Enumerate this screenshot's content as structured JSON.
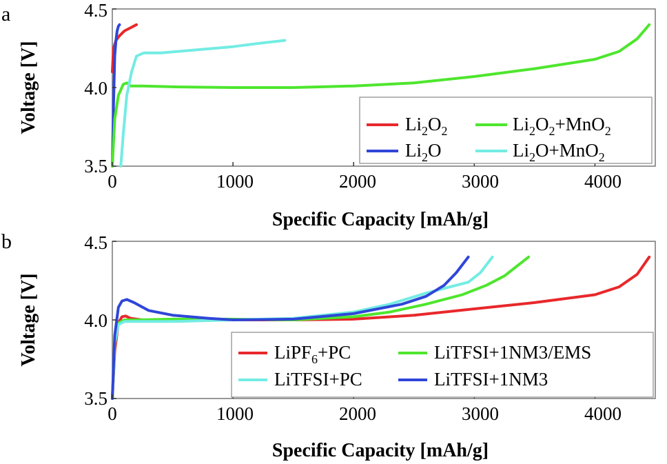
{
  "chart_data": [
    {
      "type": "line",
      "panel_label": "a",
      "xlabel": "Specific Capacity [mAh/g]",
      "ylabel": "Voltage [V]",
      "xlim": [
        0,
        4500
      ],
      "ylim": [
        3.5,
        4.5
      ],
      "xticks": [
        0,
        1000,
        2000,
        3000,
        4000
      ],
      "yticks": [
        3.5,
        4.0,
        4.5
      ],
      "xtick_labels": [
        "0",
        "1000",
        "2000",
        "3000",
        "4000"
      ],
      "ytick_labels": [
        "3.5",
        "4.0",
        "4.5"
      ],
      "legend": {
        "placement": "bottom-right",
        "columns": 2
      },
      "series": [
        {
          "name": "Li2O2",
          "label_base": "Li",
          "label_sub1": "2",
          "label_mid": "O",
          "label_sub2": "2",
          "label_rest": "",
          "label_sub3": "",
          "color": "#e8282b",
          "x": [
            0,
            10,
            30,
            60,
            100,
            150,
            200
          ],
          "y": [
            4.1,
            4.25,
            4.3,
            4.33,
            4.36,
            4.38,
            4.4
          ]
        },
        {
          "name": "Li2O",
          "label_base": "Li",
          "label_sub1": "2",
          "label_mid": "O",
          "label_sub2": "",
          "label_rest": "",
          "label_sub3": "",
          "color": "#2f46d8",
          "x": [
            0,
            10,
            20,
            30,
            40,
            50,
            60
          ],
          "y": [
            3.5,
            3.9,
            4.2,
            4.3,
            4.36,
            4.39,
            4.4
          ]
        },
        {
          "name": "Li2O2+MnO2",
          "label_base": "Li",
          "label_sub1": "2",
          "label_mid": "O",
          "label_sub2": "2",
          "label_rest": "+MnO",
          "label_sub3": "2",
          "color": "#4ee62e",
          "x": [
            0,
            20,
            50,
            90,
            120,
            150,
            250,
            500,
            1000,
            1500,
            2000,
            2500,
            3000,
            3500,
            4000,
            4200,
            4350,
            4450
          ],
          "y": [
            3.5,
            3.8,
            3.95,
            4.02,
            4.03,
            4.01,
            4.01,
            4.005,
            4.0,
            4.0,
            4.01,
            4.03,
            4.07,
            4.12,
            4.18,
            4.23,
            4.31,
            4.4
          ]
        },
        {
          "name": "Li2O+MnO2",
          "label_base": "Li",
          "label_sub1": "2",
          "label_mid": "O",
          "label_sub2": "",
          "label_rest": "+MnO",
          "label_sub3": "2",
          "color": "#73ece3",
          "x": [
            70,
            90,
            120,
            160,
            200,
            260,
            400,
            700,
            1000,
            1200,
            1430
          ],
          "y": [
            3.5,
            3.7,
            3.95,
            4.1,
            4.2,
            4.22,
            4.22,
            4.24,
            4.26,
            4.28,
            4.3
          ]
        }
      ]
    },
    {
      "type": "line",
      "panel_label": "b",
      "xlabel": "Specific Capacity [mAh/g]",
      "ylabel": "Voltage [V]",
      "xlim": [
        0,
        4500
      ],
      "ylim": [
        3.5,
        4.5
      ],
      "xticks": [
        0,
        1000,
        2000,
        3000,
        4000
      ],
      "yticks": [
        3.5,
        4.0,
        4.5
      ],
      "xtick_labels": [
        "0",
        "1000",
        "2000",
        "3000",
        "4000"
      ],
      "ytick_labels": [
        "3.5",
        "4.0",
        "4.5"
      ],
      "legend": {
        "placement": "bottom-right",
        "columns": 2
      },
      "series": [
        {
          "name": "LiPF6+PC",
          "label_base": "LiPF",
          "label_sub1": "6",
          "label_mid": "+PC",
          "label_sub2": "",
          "label_rest": "",
          "label_sub3": "",
          "color": "#e8282b",
          "x": [
            0,
            20,
            50,
            80,
            110,
            150,
            250,
            500,
            1000,
            1500,
            2000,
            2500,
            3000,
            3500,
            4000,
            4200,
            4350,
            4450
          ],
          "y": [
            3.5,
            3.8,
            3.98,
            4.02,
            4.025,
            4.01,
            4.0,
            4.0,
            4.0,
            4.0,
            4.005,
            4.03,
            4.07,
            4.11,
            4.16,
            4.21,
            4.29,
            4.4
          ]
        },
        {
          "name": "LiTFSI+1NM3/EMS",
          "label_base": "LiTFSI+1NM3/EMS",
          "label_sub1": "",
          "label_mid": "",
          "label_sub2": "",
          "label_rest": "",
          "label_sub3": "",
          "color": "#4ee62e",
          "x": [
            0,
            20,
            50,
            100,
            200,
            500,
            1000,
            1500,
            2000,
            2300,
            2600,
            2900,
            3100,
            3250,
            3350,
            3450
          ],
          "y": [
            3.5,
            3.85,
            3.98,
            4.0,
            4.0,
            4.005,
            4.005,
            4.0,
            4.02,
            4.05,
            4.1,
            4.16,
            4.22,
            4.28,
            4.34,
            4.4
          ]
        },
        {
          "name": "LiTFSI+PC",
          "label_base": "LiTFSI+PC",
          "label_sub1": "",
          "label_mid": "",
          "label_sub2": "",
          "label_rest": "",
          "label_sub3": "",
          "color": "#73ece3",
          "x": [
            0,
            20,
            50,
            100,
            200,
            500,
            1000,
            1500,
            2000,
            2300,
            2600,
            2800,
            2950,
            3050,
            3150
          ],
          "y": [
            3.5,
            3.85,
            3.97,
            3.99,
            3.99,
            3.99,
            4.0,
            4.01,
            4.05,
            4.1,
            4.17,
            4.21,
            4.24,
            4.3,
            4.4
          ]
        },
        {
          "name": "LiTFSI+1NM3",
          "label_base": "LiTFSI+1NM3",
          "label_sub1": "",
          "label_mid": "",
          "label_sub2": "",
          "label_rest": "",
          "label_sub3": "",
          "color": "#2f46d8",
          "x": [
            0,
            20,
            50,
            80,
            120,
            180,
            300,
            500,
            800,
            1000,
            1500,
            2000,
            2400,
            2600,
            2750,
            2850,
            2950
          ],
          "y": [
            3.5,
            3.9,
            4.08,
            4.12,
            4.13,
            4.11,
            4.06,
            4.03,
            4.01,
            4.0,
            4.005,
            4.04,
            4.1,
            4.15,
            4.22,
            4.3,
            4.4
          ]
        }
      ]
    }
  ]
}
